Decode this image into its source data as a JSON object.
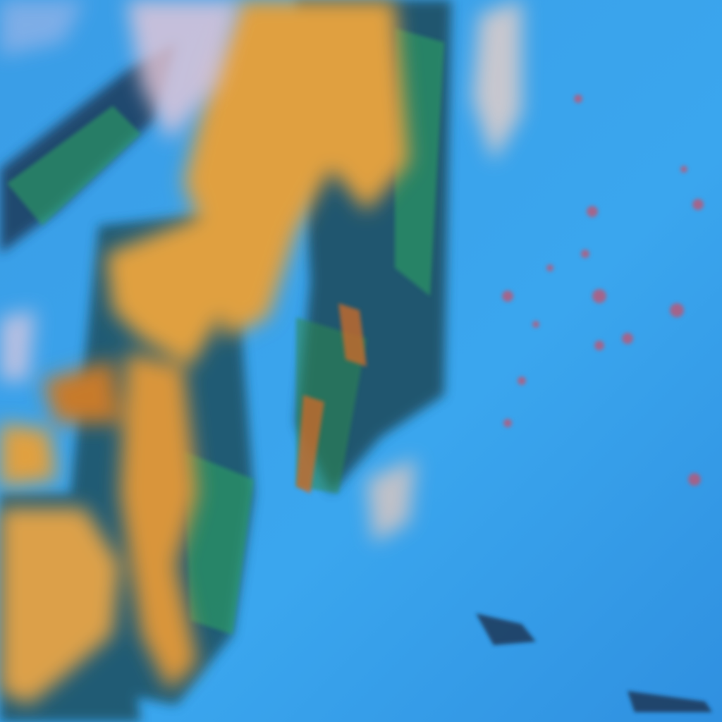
{
  "image": {
    "colors": {
      "ocean": "#2f9be8",
      "ocean_light": "#4fb4f2",
      "cloud_orange": "#e0a040",
      "cloud_orange_dark": "#c77a2a",
      "cloud_pink": "#e8c8c8",
      "texture_dark": "#10305a",
      "texture_green": "#2ea860",
      "speckle_red": "#c8506a"
    }
  }
}
